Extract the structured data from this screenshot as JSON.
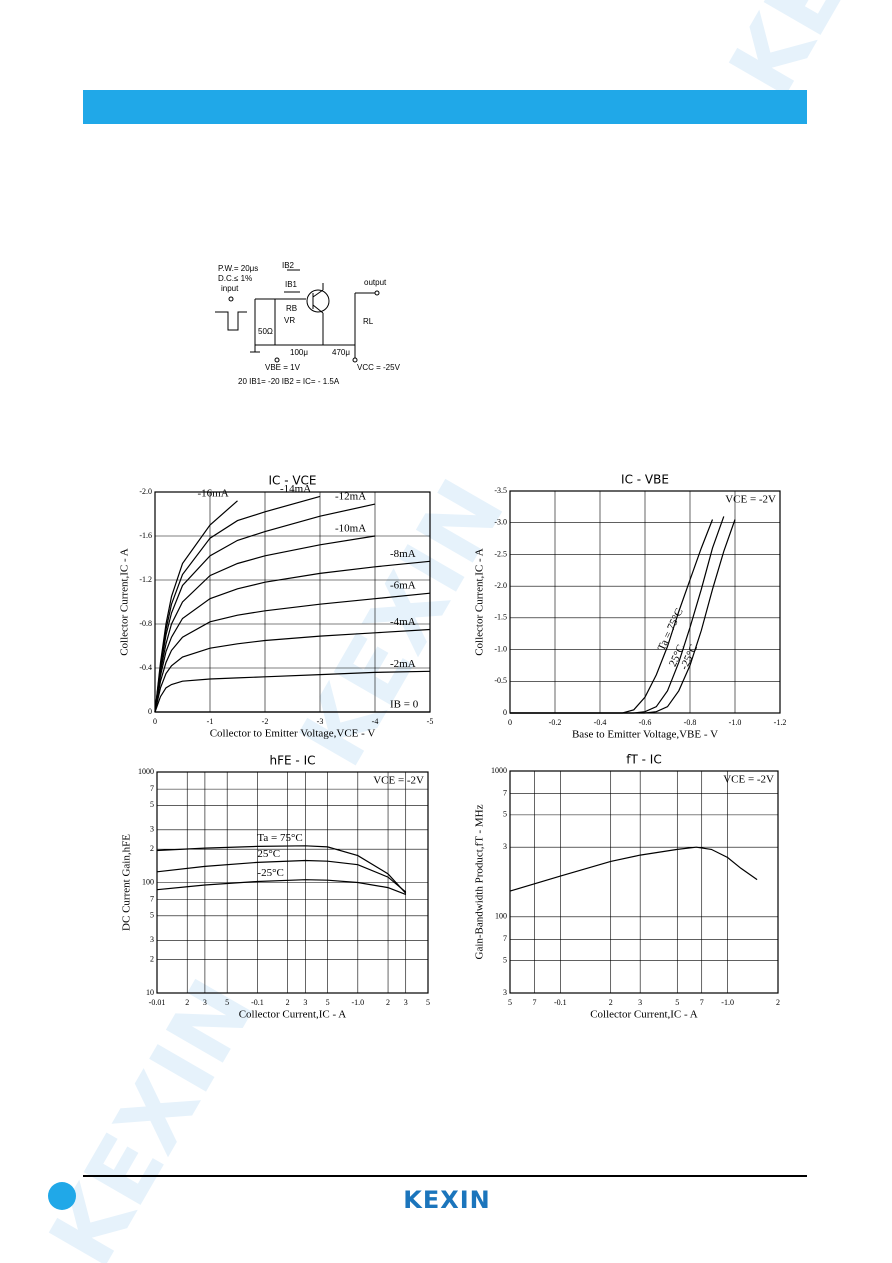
{
  "watermark": "KEXIN",
  "circuit": {
    "pulse_width": "P.W.= 20μs",
    "duty_cycle": "D.C.≤ 1%",
    "input": "input",
    "ib2": "IB2",
    "ib1": "IB1",
    "rb": "RB",
    "vr": "VR",
    "r50": "50Ω",
    "output": "output",
    "rl": "RL",
    "c1": "100μ",
    "c2": "470μ",
    "vbe": "VBE = 1V",
    "vcc": "VCC = -25V",
    "condition": "20 IB1= -20 IB2 = IC= - 1.5A"
  },
  "chart_data": [
    {
      "type": "line",
      "title": "IC - VCE",
      "xlabel": "Collector to Emitter Voltage,VCE - V",
      "ylabel": "Collector Current,IC - A",
      "x": [
        0,
        -0.1,
        -0.2,
        -0.3,
        -0.5,
        -1,
        -1.5,
        -2,
        -3,
        -4,
        -5
      ],
      "series": [
        {
          "name": "-16mA",
          "values": [
            0,
            -0.45,
            -0.8,
            -1.05,
            -1.35,
            -1.7,
            -1.92,
            null,
            null,
            null,
            null
          ]
        },
        {
          "name": "-14mA",
          "values": [
            0,
            -0.42,
            -0.75,
            -0.98,
            -1.25,
            -1.58,
            -1.74,
            -1.82,
            -1.96,
            null,
            null
          ]
        },
        {
          "name": "-12mA",
          "values": [
            0,
            -0.4,
            -0.7,
            -0.9,
            -1.15,
            -1.42,
            -1.56,
            -1.64,
            -1.78,
            -1.89,
            null
          ]
        },
        {
          "name": "-10mA",
          "values": [
            0,
            -0.37,
            -0.62,
            -0.8,
            -1.0,
            -1.24,
            -1.35,
            -1.42,
            -1.52,
            -1.6,
            null
          ]
        },
        {
          "name": "-8mA",
          "values": [
            0,
            -0.33,
            -0.55,
            -0.68,
            -0.85,
            -1.03,
            -1.12,
            -1.18,
            -1.26,
            -1.32,
            -1.37
          ]
        },
        {
          "name": "-6mA",
          "values": [
            0,
            -0.28,
            -0.45,
            -0.56,
            -0.68,
            -0.82,
            -0.88,
            -0.92,
            -0.98,
            -1.03,
            -1.08
          ]
        },
        {
          "name": "-4mA",
          "values": [
            0,
            -0.22,
            -0.35,
            -0.42,
            -0.5,
            -0.58,
            -0.62,
            -0.65,
            -0.69,
            -0.72,
            -0.75
          ]
        },
        {
          "name": "-2mA",
          "values": [
            0,
            -0.14,
            -0.22,
            -0.25,
            -0.28,
            -0.3,
            -0.31,
            -0.32,
            -0.34,
            -0.36,
            -0.37
          ]
        },
        {
          "name": "IB = 0",
          "values": [
            0,
            0,
            0,
            0,
            0,
            0,
            0,
            0,
            0,
            0,
            0
          ]
        }
      ],
      "xlim": [
        0,
        -5
      ],
      "xticks": [
        0,
        -1,
        -2,
        -3,
        -4,
        -5
      ],
      "ylim": [
        0,
        -2
      ],
      "yticks": [
        0,
        -0.4,
        -0.8,
        -1.2,
        -1.6,
        {
          "value": -2,
          "label": "-2.0"
        }
      ],
      "grid": true
    },
    {
      "type": "line",
      "title": "IC - VBE",
      "annotation": "VCE = -2V",
      "xlabel": "Base to Emitter Voltage,VBE - V",
      "ylabel": "Collector Current,IC - A",
      "x": [
        0,
        -0.5,
        -0.55,
        -0.6,
        -0.65,
        -0.7,
        -0.75,
        -0.8,
        -0.85,
        -0.9,
        -0.95,
        -1.0
      ],
      "series": [
        {
          "name": "Ta = 75°C",
          "values": [
            0,
            0,
            -0.05,
            -0.25,
            -0.6,
            -1.05,
            -1.6,
            -2.1,
            -2.6,
            -3.05,
            null,
            null
          ]
        },
        {
          "name": "25°C",
          "values": [
            0,
            0,
            0,
            -0.02,
            -0.1,
            -0.35,
            -0.8,
            -1.35,
            -1.95,
            -2.6,
            -3.1,
            null
          ]
        },
        {
          "name": "-25°C",
          "values": [
            0,
            0,
            0,
            0,
            -0.02,
            -0.1,
            -0.35,
            -0.75,
            -1.3,
            -1.95,
            -2.55,
            -3.05
          ]
        }
      ],
      "xlim": [
        0,
        -1.2
      ],
      "xticks": [
        0,
        -0.2,
        -0.4,
        -0.6,
        -0.8,
        {
          "value": -1,
          "label": "-1.0"
        },
        -1.2
      ],
      "ylim": [
        0,
        -3.5
      ],
      "yticks": [
        0,
        -0.5,
        {
          "value": -1,
          "label": "-1.0"
        },
        -1.5,
        {
          "value": -2,
          "label": "-2.0"
        },
        -2.5,
        {
          "value": -3,
          "label": "-3.0"
        },
        -3.5
      ],
      "grid": true
    },
    {
      "type": "line",
      "title": "hFE - IC",
      "annotation": "VCE = -2V",
      "xlabel": "Collector Current,IC - A",
      "ylabel": "DC Current Gain,hFE",
      "log_x": true,
      "log_y": true,
      "x": [
        -0.01,
        -0.03,
        -0.1,
        -0.3,
        -0.5,
        -1,
        -2,
        -3
      ],
      "series": [
        {
          "name": "Ta = 75°C",
          "values": [
            195,
            205,
            212,
            215,
            210,
            175,
            120,
            80
          ]
        },
        {
          "name": "25°C",
          "values": [
            125,
            140,
            152,
            158,
            156,
            145,
            112,
            82
          ]
        },
        {
          "name": "-25°C",
          "values": [
            86,
            95,
            102,
            106,
            105,
            100,
            90,
            78
          ]
        }
      ],
      "xlim": [
        -0.01,
        -5
      ],
      "xticks": [
        -0.01,
        {
          "value": -0.02,
          "label": "2"
        },
        {
          "value": -0.03,
          "label": "3"
        },
        {
          "value": -0.05,
          "label": "5"
        },
        -0.1,
        {
          "value": -0.2,
          "label": "2"
        },
        {
          "value": -0.3,
          "label": "3"
        },
        {
          "value": -0.5,
          "label": "5"
        },
        {
          "value": -1,
          "label": "-1.0"
        },
        {
          "value": -2,
          "label": "2"
        },
        {
          "value": -3,
          "label": "3"
        },
        {
          "value": -5,
          "label": "5"
        }
      ],
      "ylim": [
        10,
        1000
      ],
      "yticks": [
        10,
        {
          "value": 20,
          "label": "2"
        },
        {
          "value": 30,
          "label": "3"
        },
        {
          "value": 50,
          "label": "5"
        },
        {
          "value": 70,
          "label": "7"
        },
        100,
        {
          "value": 200,
          "label": "2"
        },
        {
          "value": 300,
          "label": "3"
        },
        {
          "value": 500,
          "label": "5"
        },
        {
          "value": 700,
          "label": "7"
        },
        1000
      ],
      "grid": true
    },
    {
      "type": "line",
      "title": "fT - IC",
      "annotation": "VCE = -2V",
      "xlabel": "Collector Current,IC - A",
      "ylabel": "Gain-Bandwidth Product,fT - MHz",
      "log_x": true,
      "log_y": true,
      "x": [
        -0.05,
        -0.1,
        -0.2,
        -0.3,
        -0.5,
        -0.65,
        -0.8,
        -1,
        -1.2,
        -1.5
      ],
      "series": [
        {
          "values": [
            150,
            190,
            240,
            265,
            290,
            300,
            290,
            255,
            215,
            180
          ]
        }
      ],
      "xlim": [
        -0.05,
        -2
      ],
      "xticks": [
        {
          "value": -0.05,
          "label": "5"
        },
        {
          "value": -0.07,
          "label": "7"
        },
        -0.1,
        {
          "value": -0.2,
          "label": "2"
        },
        {
          "value": -0.3,
          "label": "3"
        },
        {
          "value": -0.5,
          "label": "5"
        },
        {
          "value": -0.7,
          "label": "7"
        },
        {
          "value": -1,
          "label": "-1.0"
        },
        {
          "value": -2,
          "label": "2"
        }
      ],
      "ylim": [
        30,
        1000
      ],
      "yticks": [
        {
          "value": 30,
          "label": "3"
        },
        {
          "value": 50,
          "label": "5"
        },
        {
          "value": 70,
          "label": "7"
        },
        100,
        {
          "value": 300,
          "label": "3"
        },
        {
          "value": 500,
          "label": "5"
        },
        {
          "value": 700,
          "label": "7"
        },
        1000
      ],
      "grid": true
    }
  ],
  "footer": {
    "logo": "KEXIN"
  }
}
